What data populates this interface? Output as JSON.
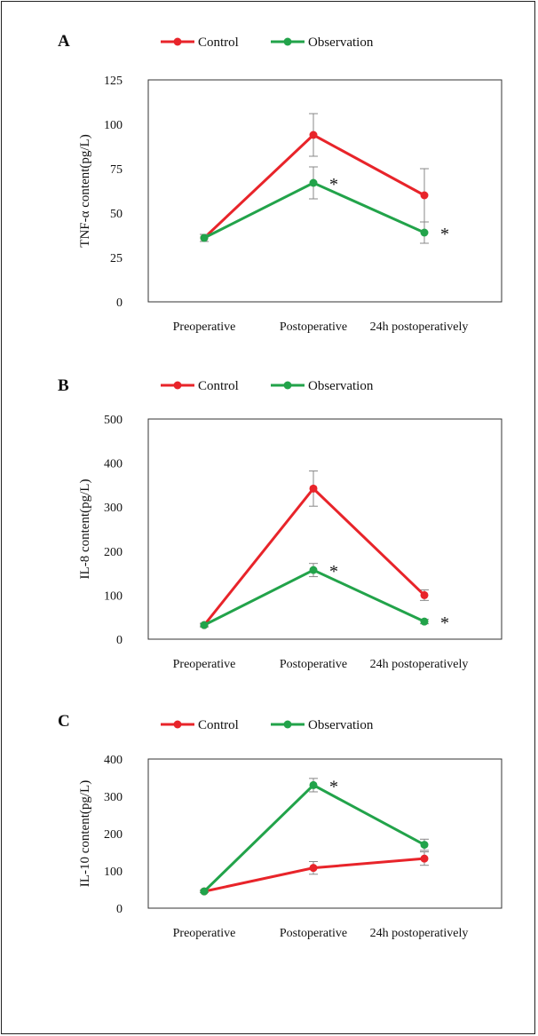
{
  "chart_data": [
    {
      "panel": "A",
      "type": "line",
      "categories": [
        "Preoperative",
        "Postoperative",
        "24h postoperatively"
      ],
      "ylabel": "TNF-α content(pg/L)",
      "ylim": [
        0,
        125
      ],
      "yticks": [
        0,
        25,
        50,
        75,
        100,
        125
      ],
      "series": [
        {
          "name": "Control",
          "color": "#e8242a",
          "values": [
            36,
            94,
            60
          ],
          "errors": [
            2,
            12,
            15
          ]
        },
        {
          "name": "Observation",
          "color": "#22a34a",
          "values": [
            36,
            67,
            39
          ],
          "errors": [
            2,
            9,
            6
          ]
        }
      ],
      "annotations": [
        {
          "category": 1,
          "text": "*"
        },
        {
          "category": 2,
          "text": "*"
        }
      ]
    },
    {
      "panel": "B",
      "type": "line",
      "categories": [
        "Preoperative",
        "Postoperative",
        "24h postoperatively"
      ],
      "ylabel": "IL-8 content(pg/L)",
      "ylim": [
        0,
        500
      ],
      "yticks": [
        0,
        100,
        200,
        300,
        400,
        500
      ],
      "series": [
        {
          "name": "Control",
          "color": "#e8242a",
          "values": [
            32,
            342,
            100
          ],
          "errors": [
            4,
            40,
            12
          ]
        },
        {
          "name": "Observation",
          "color": "#22a34a",
          "values": [
            32,
            157,
            40
          ],
          "errors": [
            4,
            15,
            5
          ]
        }
      ],
      "annotations": [
        {
          "category": 1,
          "text": "*"
        },
        {
          "category": 2,
          "text": "*"
        }
      ]
    },
    {
      "panel": "C",
      "type": "line",
      "categories": [
        "Preoperative",
        "Postoperative",
        "24h postoperatively"
      ],
      "ylabel": "IL-10 content(pg/L)",
      "ylim": [
        0,
        400
      ],
      "yticks": [
        0,
        100,
        200,
        300,
        400
      ],
      "series": [
        {
          "name": "Control",
          "color": "#e8242a",
          "values": [
            45,
            108,
            133
          ],
          "errors": [
            3,
            17,
            18
          ]
        },
        {
          "name": "Observation",
          "color": "#22a34a",
          "values": [
            45,
            330,
            170
          ],
          "errors": [
            3,
            18,
            15
          ]
        }
      ],
      "annotations": [
        {
          "category": 1,
          "text": "*"
        }
      ]
    }
  ]
}
